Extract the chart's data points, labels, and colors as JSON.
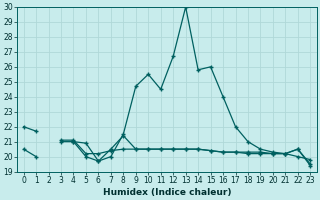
{
  "xlabel": "Humidex (Indice chaleur)",
  "background_color": "#c8ecec",
  "grid_color": "#b0d8d8",
  "line_color": "#006060",
  "x": [
    0,
    1,
    2,
    3,
    4,
    5,
    6,
    7,
    8,
    9,
    10,
    11,
    12,
    13,
    14,
    15,
    16,
    17,
    18,
    19,
    20,
    21,
    22,
    23
  ],
  "line1": [
    22.0,
    21.7,
    null,
    null,
    21.0,
    20.0,
    19.7,
    20.0,
    21.5,
    24.7,
    25.5,
    24.5,
    26.7,
    30.0,
    25.8,
    26.0,
    24.0,
    22.0,
    21.0,
    20.5,
    20.3,
    20.2,
    20.5,
    19.4
  ],
  "line2": [
    null,
    null,
    null,
    21.1,
    21.1,
    20.2,
    20.2,
    20.4,
    20.5,
    20.5,
    20.5,
    20.5,
    20.5,
    20.5,
    20.5,
    20.4,
    20.3,
    20.3,
    20.3,
    20.3,
    20.2,
    20.2,
    20.0,
    19.8
  ],
  "line3": [
    20.5,
    20.0,
    null,
    21.0,
    21.0,
    20.9,
    19.7,
    20.5,
    21.4,
    20.5,
    20.5,
    20.5,
    20.5,
    20.5,
    20.5,
    20.4,
    20.3,
    20.3,
    20.2,
    20.2,
    20.2,
    20.2,
    20.5,
    19.5
  ],
  "ylim_min": 19,
  "ylim_max": 30,
  "xlim_min": -0.5,
  "xlim_max": 23.5,
  "yticks": [
    19,
    20,
    21,
    22,
    23,
    24,
    25,
    26,
    27,
    28,
    29,
    30
  ],
  "xticks": [
    0,
    1,
    2,
    3,
    4,
    5,
    6,
    7,
    8,
    9,
    10,
    11,
    12,
    13,
    14,
    15,
    16,
    17,
    18,
    19,
    20,
    21,
    22,
    23
  ],
  "tick_fontsize": 5.5,
  "xlabel_fontsize": 6.5
}
